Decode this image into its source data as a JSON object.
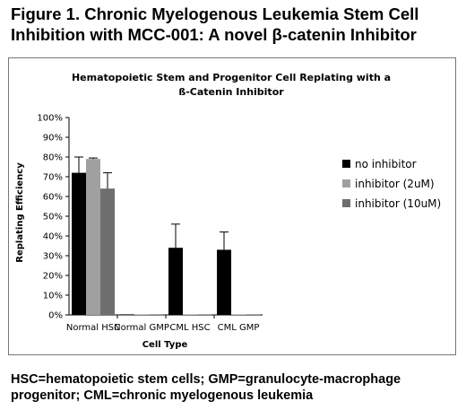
{
  "figure": {
    "title_line1": "Figure 1.  Chronic Myelogenous Leukemia Stem Cell",
    "title_line2": "Inhibition with MCC-001:  A novel β-catenin  Inhibitor",
    "caption_line1": "HSC=hematopoietic stem cells; GMP=granulocyte-macrophage",
    "caption_line2": "progenitor; CML=chronic myelogenous leukemia"
  },
  "chart_data": {
    "type": "bar",
    "title_line1": "Hematopoietic Stem and Progenitor Cell Replating with a",
    "title_line2": "ß-Catenin Inhibitor",
    "xlabel": "Cell Type",
    "ylabel": "Replating Efficiency",
    "categories": [
      "Normal HSC",
      "Normal GMP",
      "CML HSC",
      "CML GMP"
    ],
    "ylim": [
      0,
      1.0
    ],
    "yticks": [
      "0%",
      "10%",
      "20%",
      "30%",
      "40%",
      "50%",
      "60%",
      "70%",
      "80%",
      "90%",
      "100%"
    ],
    "grid": false,
    "legend_position": "right",
    "series": [
      {
        "name": "no inhibitor",
        "color": "#000000",
        "values": [
          0.72,
          0.0,
          0.34,
          0.33
        ],
        "errors": [
          0.08,
          0.0,
          0.12,
          0.09
        ]
      },
      {
        "name": "inhibitor (2uM)",
        "color": "#a0a0a0",
        "values": [
          0.79,
          0.0,
          0.0,
          0.0
        ],
        "errors": [
          0.005,
          0.0,
          0.0,
          0.0
        ]
      },
      {
        "name": "inhibitor (10uM)",
        "color": "#6e6e6e",
        "values": [
          0.64,
          0.0,
          0.0,
          0.0
        ],
        "errors": [
          0.08,
          0.0,
          0.0,
          0.0
        ]
      }
    ]
  }
}
